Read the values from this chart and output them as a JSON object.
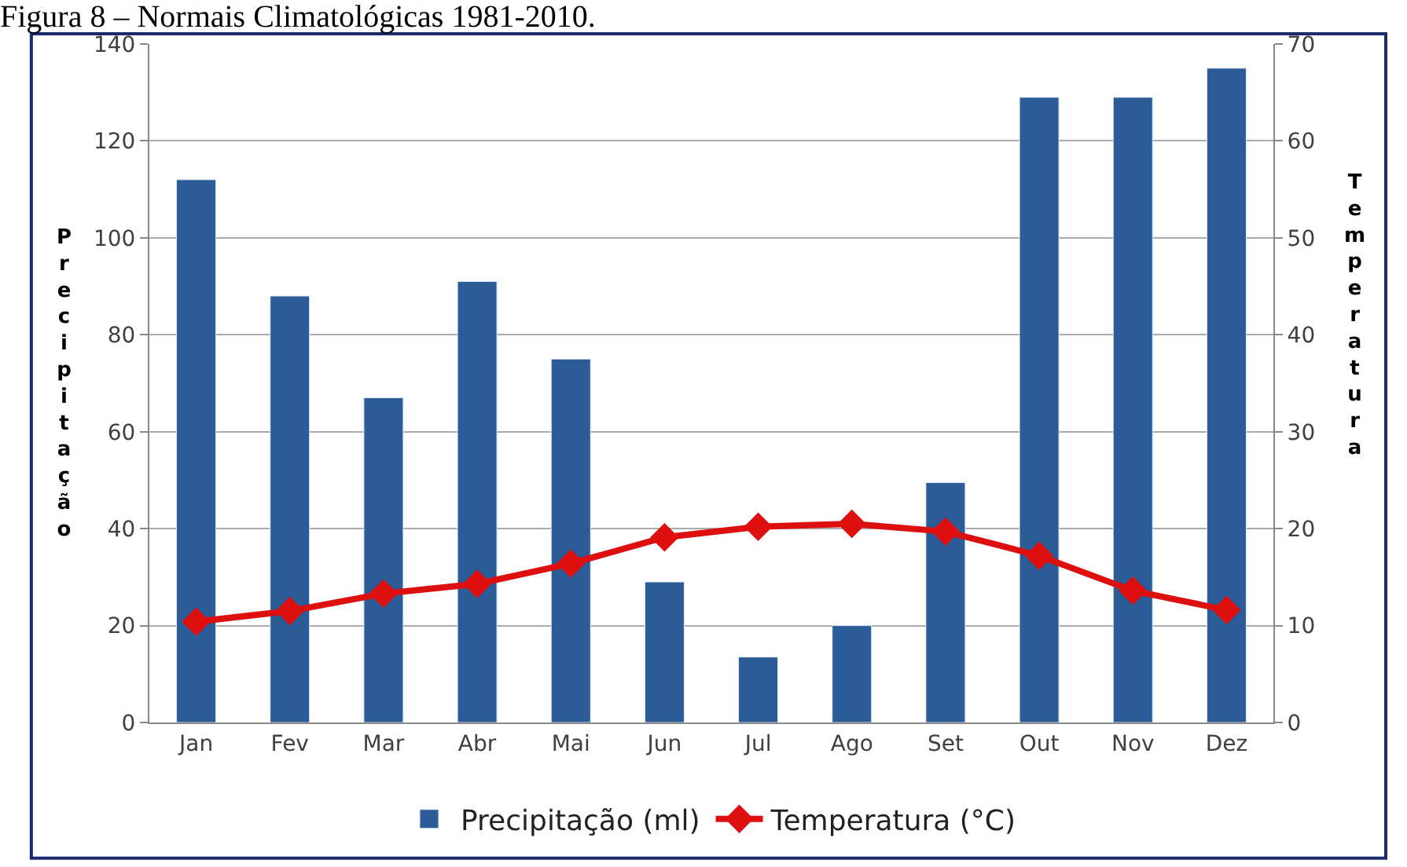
{
  "chart_data": {
    "type": "bar",
    "title": "Figura 8 – Normais Climatológicas 1981-2010.",
    "ylabel": "Precipitação",
    "y2label": "Temperatura",
    "categories": [
      "Jan",
      "Fev",
      "Mar",
      "Abr",
      "Mai",
      "Jun",
      "Jul",
      "Ago",
      "Set",
      "Out",
      "Nov",
      "Dez"
    ],
    "series": [
      {
        "name": "Precipitação (ml)",
        "color": "#2b5c97",
        "values": [
          112,
          88,
          67,
          91,
          75,
          29,
          13.5,
          20,
          49.5,
          129,
          129,
          135
        ]
      },
      {
        "name": "Temperatura (°C)",
        "type": "line",
        "axis": "y2",
        "color": "#dd0f0f",
        "marker": "diamond",
        "values": [
          10.4,
          11.5,
          13.3,
          14.3,
          16.4,
          19.1,
          20.2,
          20.5,
          19.7,
          17.2,
          13.6,
          11.6
        ]
      }
    ],
    "ylim": [
      0,
      140
    ],
    "yticks": [
      0,
      20,
      40,
      60,
      80,
      100,
      120,
      140
    ],
    "y2lim": [
      0,
      70
    ],
    "y2ticks": [
      0,
      10,
      20,
      30,
      40,
      50,
      60,
      70
    ],
    "grid": "y",
    "legend": "bottom"
  }
}
